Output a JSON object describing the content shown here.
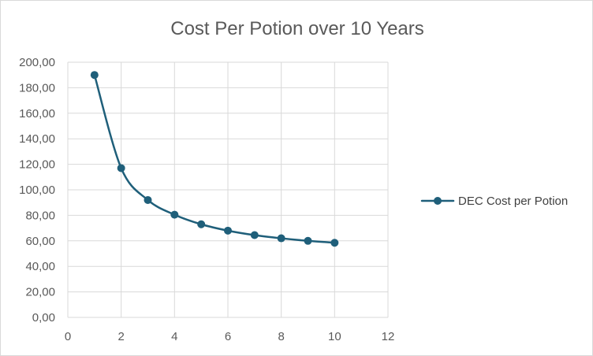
{
  "chart_data": {
    "type": "scatter",
    "title": "Cost Per Potion over 10 Years",
    "xlabel": "",
    "ylabel": "",
    "xlim": [
      0,
      12
    ],
    "ylim": [
      0,
      200
    ],
    "x_ticks": [
      0,
      2,
      4,
      6,
      8,
      10,
      12
    ],
    "y_ticks": [
      0,
      20,
      40,
      60,
      80,
      100,
      120,
      140,
      160,
      180,
      200
    ],
    "x_tick_labels": [
      "0",
      "2",
      "4",
      "6",
      "8",
      "10",
      "12"
    ],
    "y_tick_labels": [
      "0,00",
      "20,00",
      "40,00",
      "60,00",
      "80,00",
      "100,00",
      "120,00",
      "140,00",
      "160,00",
      "180,00",
      "200,00"
    ],
    "grid": true,
    "smooth_line": true,
    "legend_position": "right",
    "series": [
      {
        "name": "DEC Cost per Potion",
        "color": "#1f5f7a",
        "x": [
          1,
          2,
          3,
          4,
          5,
          6,
          7,
          8,
          9,
          10
        ],
        "y": [
          190,
          117,
          92,
          80.5,
          73,
          68,
          64.5,
          62,
          60,
          58.5
        ]
      }
    ]
  }
}
